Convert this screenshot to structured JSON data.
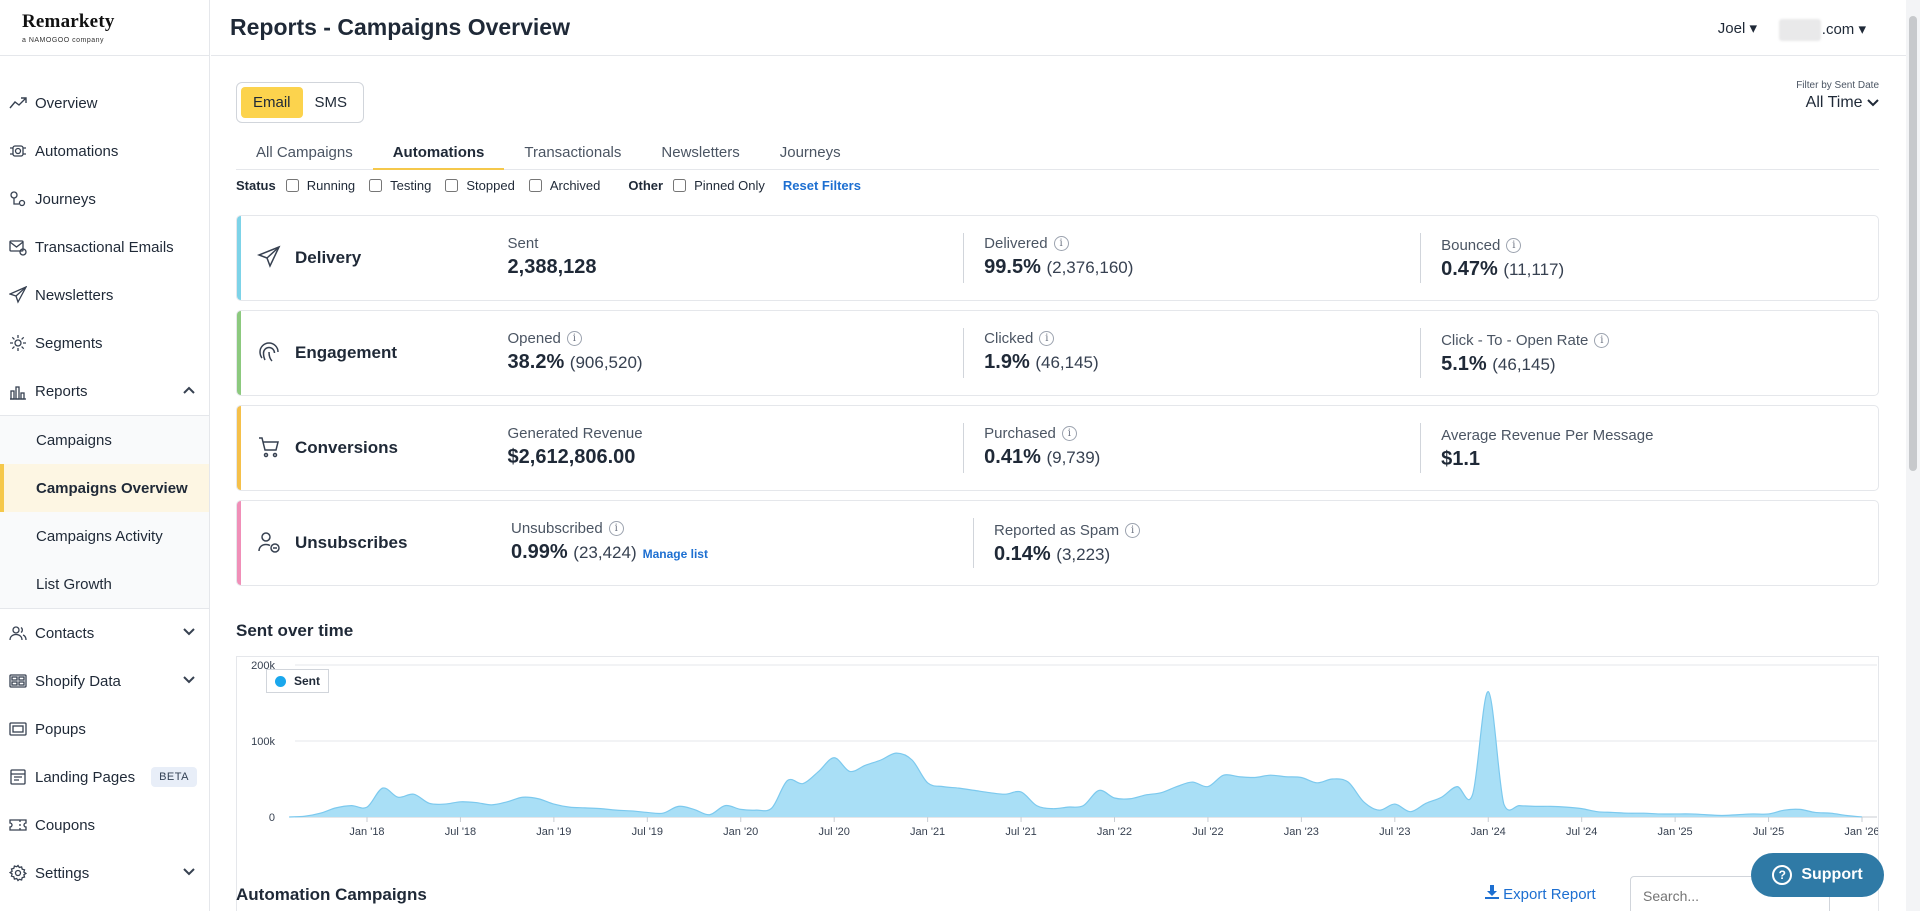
{
  "brand": {
    "name": "Remarkety",
    "tagline": "a NAMOGOO company"
  },
  "header": {
    "title": "Reports - Campaigns Overview",
    "user": "Joel",
    "domain": ".com"
  },
  "sidebar": {
    "items": [
      {
        "label": "Overview"
      },
      {
        "label": "Automations"
      },
      {
        "label": "Journeys"
      },
      {
        "label": "Transactional Emails"
      },
      {
        "label": "Newsletters"
      },
      {
        "label": "Segments"
      },
      {
        "label": "Reports"
      },
      {
        "label": "Contacts"
      },
      {
        "label": "Shopify Data"
      },
      {
        "label": "Popups"
      },
      {
        "label": "Landing Pages",
        "badge": "BETA"
      },
      {
        "label": "Coupons"
      },
      {
        "label": "Settings"
      }
    ],
    "reports_sub": [
      {
        "label": "Campaigns"
      },
      {
        "label": "Campaigns Overview"
      },
      {
        "label": "Campaigns Activity"
      },
      {
        "label": "List Growth"
      }
    ]
  },
  "channel": {
    "email": "Email",
    "sms": "SMS"
  },
  "date_filter": {
    "label": "Filter by Sent Date",
    "value": "All Time"
  },
  "tabs": [
    "All Campaigns",
    "Automations",
    "Transactionals",
    "Newsletters",
    "Journeys"
  ],
  "filters": {
    "status_label": "Status",
    "status": [
      "Running",
      "Testing",
      "Stopped",
      "Archived"
    ],
    "other_label": "Other",
    "other": [
      "Pinned Only"
    ],
    "reset": "Reset Filters"
  },
  "cards": {
    "delivery": {
      "title": "Delivery",
      "m1": {
        "label": "Sent",
        "value": "2,388,128"
      },
      "m2": {
        "label": "Delivered",
        "value": "99.5%",
        "sub": "(2,376,160)"
      },
      "m3": {
        "label": "Bounced",
        "value": "0.47%",
        "sub": "(11,117)"
      }
    },
    "engagement": {
      "title": "Engagement",
      "m1": {
        "label": "Opened",
        "value": "38.2%",
        "sub": "(906,520)"
      },
      "m2": {
        "label": "Clicked",
        "value": "1.9%",
        "sub": "(46,145)"
      },
      "m3": {
        "label": "Click - To - Open Rate",
        "value": "5.1%",
        "sub": "(46,145)"
      }
    },
    "conversions": {
      "title": "Conversions",
      "m1": {
        "label": "Generated Revenue",
        "value": "$2,612,806.00"
      },
      "m2": {
        "label": "Purchased",
        "value": "0.41%",
        "sub": "(9,739)"
      },
      "m3": {
        "label": "Average Revenue Per Message",
        "value": "$1.1"
      }
    },
    "unsubscribes": {
      "title": "Unsubscribes",
      "m1": {
        "label": "Unsubscribed",
        "value": "0.99%",
        "sub": "(23,424)",
        "link": "Manage list"
      },
      "m2": {
        "label": "Reported as Spam",
        "value": "0.14%",
        "sub": "(3,223)"
      }
    }
  },
  "colors": {
    "delivery": "#7dd3e8",
    "engagement": "#8cc97e",
    "conversions": "#f5c04a",
    "unsubscribes": "#f08fb8",
    "series": "#1aa7ec",
    "fill": "#a9dff6"
  },
  "chart_section_title": "Sent over time",
  "chart_data": {
    "type": "area",
    "title": "",
    "xlabel": "",
    "ylabel": "",
    "ylim": [
      0,
      200000
    ],
    "yticks": [
      {
        "v": 0,
        "label": "0"
      },
      {
        "v": 100000,
        "label": "100k"
      },
      {
        "v": 200000,
        "label": "200k"
      }
    ],
    "xtick_labels": [
      "Jan '18",
      "Jul '18",
      "Jan '19",
      "Jul '19",
      "Jan '20",
      "Jul '20",
      "Jan '21",
      "Jul '21",
      "Jan '22",
      "Jul '22",
      "Jan '23",
      "Jul '23",
      "Jan '24",
      "Jul '24",
      "Jan '25",
      "Jul '25",
      "Jan '26"
    ],
    "series": [
      {
        "name": "Sent",
        "x": [
          "2017-08",
          "2017-09",
          "2017-10",
          "2017-11",
          "2017-12",
          "2018-01",
          "2018-02",
          "2018-03",
          "2018-04",
          "2018-05",
          "2018-06",
          "2018-07",
          "2018-08",
          "2018-09",
          "2018-10",
          "2018-11",
          "2018-12",
          "2019-01",
          "2019-02",
          "2019-03",
          "2019-04",
          "2019-05",
          "2019-06",
          "2019-07",
          "2019-08",
          "2019-09",
          "2019-10",
          "2019-11",
          "2019-12",
          "2020-01",
          "2020-02",
          "2020-03",
          "2020-04",
          "2020-05",
          "2020-06",
          "2020-07",
          "2020-08",
          "2020-09",
          "2020-10",
          "2020-11",
          "2020-12",
          "2021-01",
          "2021-02",
          "2021-03",
          "2021-04",
          "2021-05",
          "2021-06",
          "2021-07",
          "2021-08",
          "2021-09",
          "2021-10",
          "2021-11",
          "2021-12",
          "2022-01",
          "2022-02",
          "2022-03",
          "2022-04",
          "2022-05",
          "2022-06",
          "2022-07",
          "2022-08",
          "2022-09",
          "2022-10",
          "2022-11",
          "2022-12",
          "2023-01",
          "2023-02",
          "2023-03",
          "2023-04",
          "2023-05",
          "2023-06",
          "2023-07",
          "2023-08",
          "2023-09",
          "2023-10",
          "2023-11",
          "2023-12",
          "2024-01",
          "2024-02",
          "2024-03",
          "2024-04",
          "2024-05",
          "2024-06",
          "2024-07",
          "2024-08",
          "2024-09",
          "2024-10",
          "2024-11",
          "2024-12",
          "2025-01",
          "2025-02",
          "2025-03",
          "2025-04",
          "2025-05",
          "2025-06",
          "2025-07",
          "2025-08",
          "2025-09",
          "2025-10",
          "2025-11",
          "2025-12",
          "2026-01"
        ],
        "values": [
          0,
          1000,
          5000,
          12000,
          15000,
          13000,
          38000,
          26000,
          30000,
          18000,
          17000,
          20000,
          19000,
          16000,
          20000,
          26000,
          24000,
          17000,
          13000,
          12000,
          11000,
          9000,
          8000,
          6000,
          5000,
          14000,
          10000,
          3000,
          15000,
          10000,
          9000,
          12000,
          48000,
          44000,
          60000,
          78000,
          60000,
          68000,
          75000,
          84000,
          75000,
          45000,
          40000,
          38000,
          35000,
          32000,
          30000,
          33000,
          15000,
          11000,
          13000,
          15000,
          35000,
          25000,
          24000,
          29000,
          32000,
          40000,
          46000,
          40000,
          55000,
          53000,
          52000,
          55000,
          53000,
          52000,
          45000,
          50000,
          46000,
          20000,
          9000,
          17000,
          7000,
          18000,
          26000,
          40000,
          30000,
          165000,
          17000,
          15000,
          14000,
          14000,
          13000,
          11000,
          7000,
          6000,
          5000,
          5000,
          4000,
          4000,
          4000,
          3000,
          2000,
          3000,
          4000,
          4000,
          9000,
          10000,
          6000,
          5000,
          2000,
          0
        ]
      }
    ],
    "legend": "top-left",
    "grid": true
  },
  "bottom": {
    "title": "Automation Campaigns",
    "export": "Export Report",
    "search_placeholder": "Search..."
  },
  "support": {
    "label": "Support"
  }
}
